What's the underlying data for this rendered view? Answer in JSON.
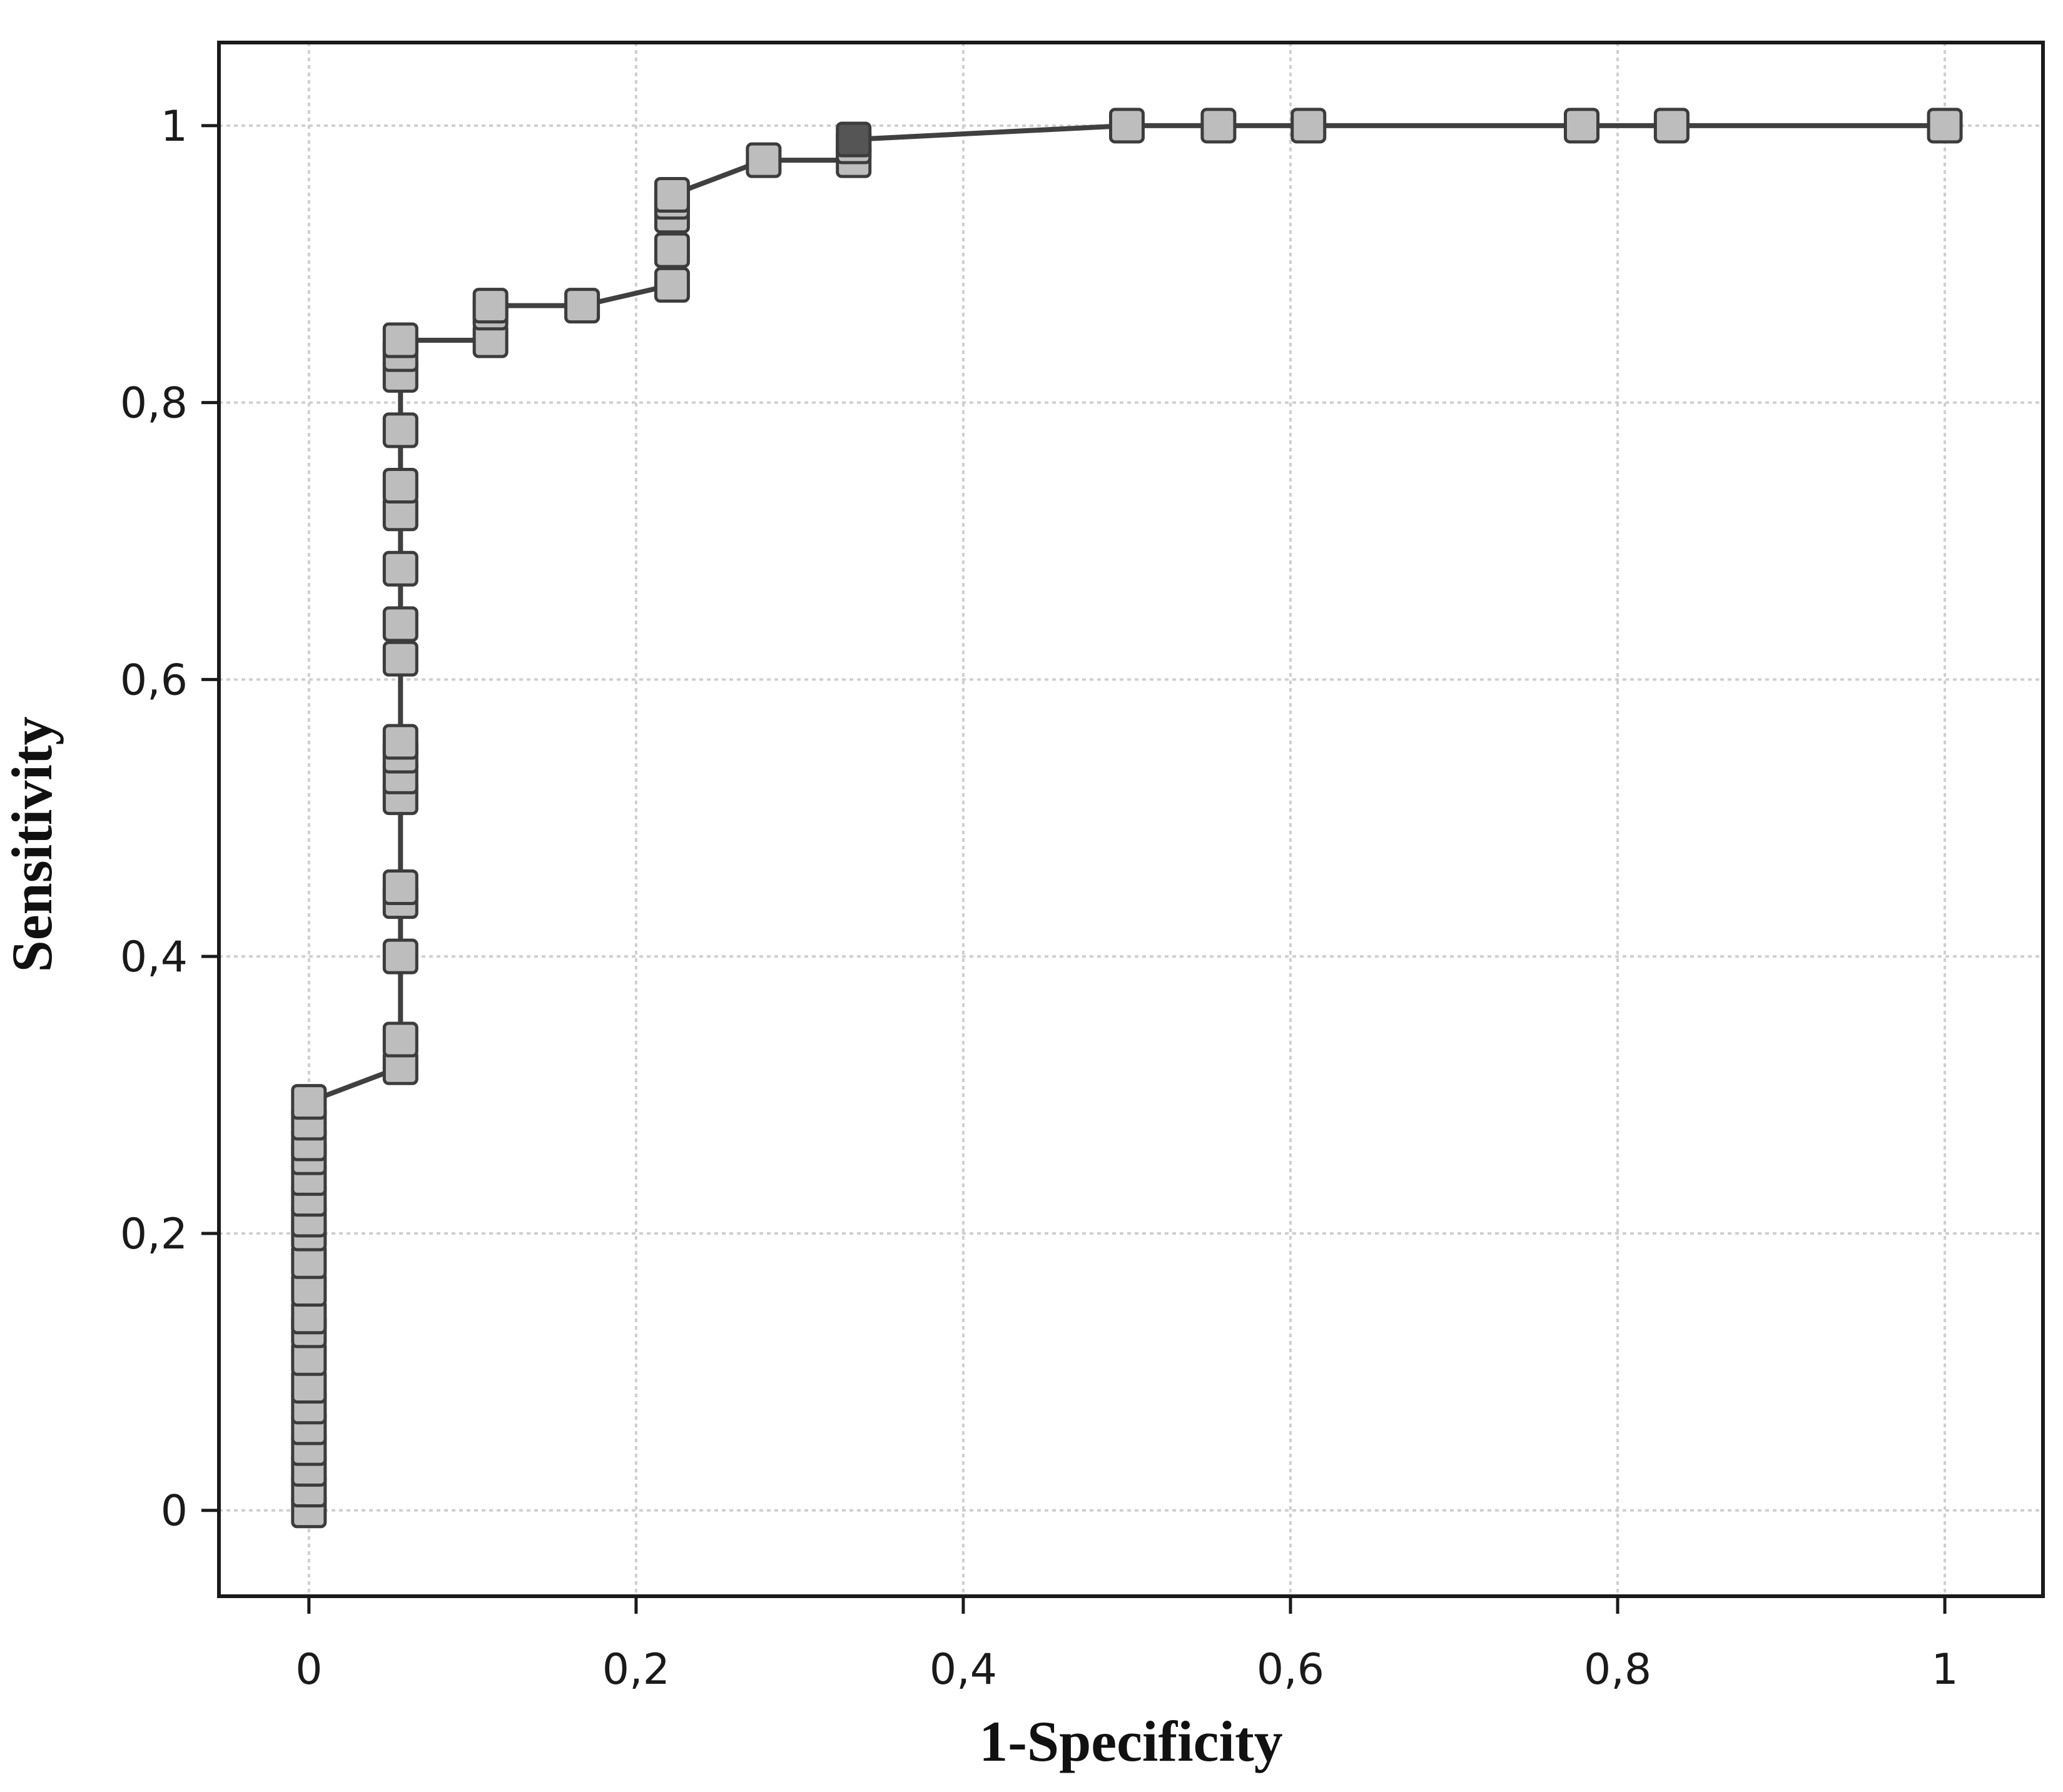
{
  "chart_data": {
    "type": "line",
    "title": "",
    "xlabel": "1-Specificity",
    "ylabel": "Sensitivity",
    "xlim": [
      -0.055,
      1.06
    ],
    "ylim": [
      -0.062,
      1.06
    ],
    "x_ticks": [
      0,
      0.2,
      0.4,
      0.6,
      0.8,
      1
    ],
    "x_tick_labels": [
      "0",
      "0,2",
      "0,4",
      "0,6",
      "0,8",
      "1"
    ],
    "y_ticks": [
      0,
      0.2,
      0.4,
      0.6,
      0.8,
      1
    ],
    "y_tick_labels": [
      "0",
      "0,2",
      "0,4",
      "0,6",
      "0,8",
      "1"
    ],
    "grid": true,
    "legend": "none",
    "marker": "square",
    "colors": {
      "line": "#404040",
      "marker_fill": "#bdbdbd",
      "marker_edge": "#3c3c3c",
      "highlight_fill": "#555555",
      "grid": "#cfcfcf",
      "frame": "#1a1a1a"
    },
    "series": [
      {
        "x": [
          0,
          0,
          0,
          0,
          0,
          0,
          0,
          0,
          0,
          0,
          0,
          0,
          0,
          0,
          0,
          0,
          0,
          0,
          0,
          0,
          0.056,
          0.056,
          0.056,
          0.056,
          0.056,
          0.056,
          0.056,
          0.056,
          0.056,
          0.056,
          0.056,
          0.056,
          0.056,
          0.056,
          0.056,
          0.056,
          0.056,
          0.056,
          0.111,
          0.111,
          0.111,
          0.167,
          0.222,
          0.222,
          0.222,
          0.222,
          0.222,
          0.278,
          0.333,
          0.333,
          0.333,
          0.5,
          0.556,
          0.611,
          0.778,
          0.833,
          1
        ],
        "y": [
          0,
          0.015,
          0.03,
          0.045,
          0.06,
          0.075,
          0.09,
          0.11,
          0.13,
          0.14,
          0.16,
          0.18,
          0.2,
          0.21,
          0.225,
          0.24,
          0.255,
          0.265,
          0.28,
          0.295,
          0.32,
          0.34,
          0.4,
          0.44,
          0.45,
          0.515,
          0.53,
          0.545,
          0.555,
          0.615,
          0.64,
          0.68,
          0.72,
          0.74,
          0.78,
          0.82,
          0.835,
          0.845,
          0.845,
          0.865,
          0.87,
          0.87,
          0.885,
          0.91,
          0.935,
          0.945,
          0.95,
          0.975,
          0.975,
          0.985,
          0.99,
          1,
          1,
          1,
          1,
          1,
          1
        ],
        "highlight_index": 50
      }
    ]
  }
}
